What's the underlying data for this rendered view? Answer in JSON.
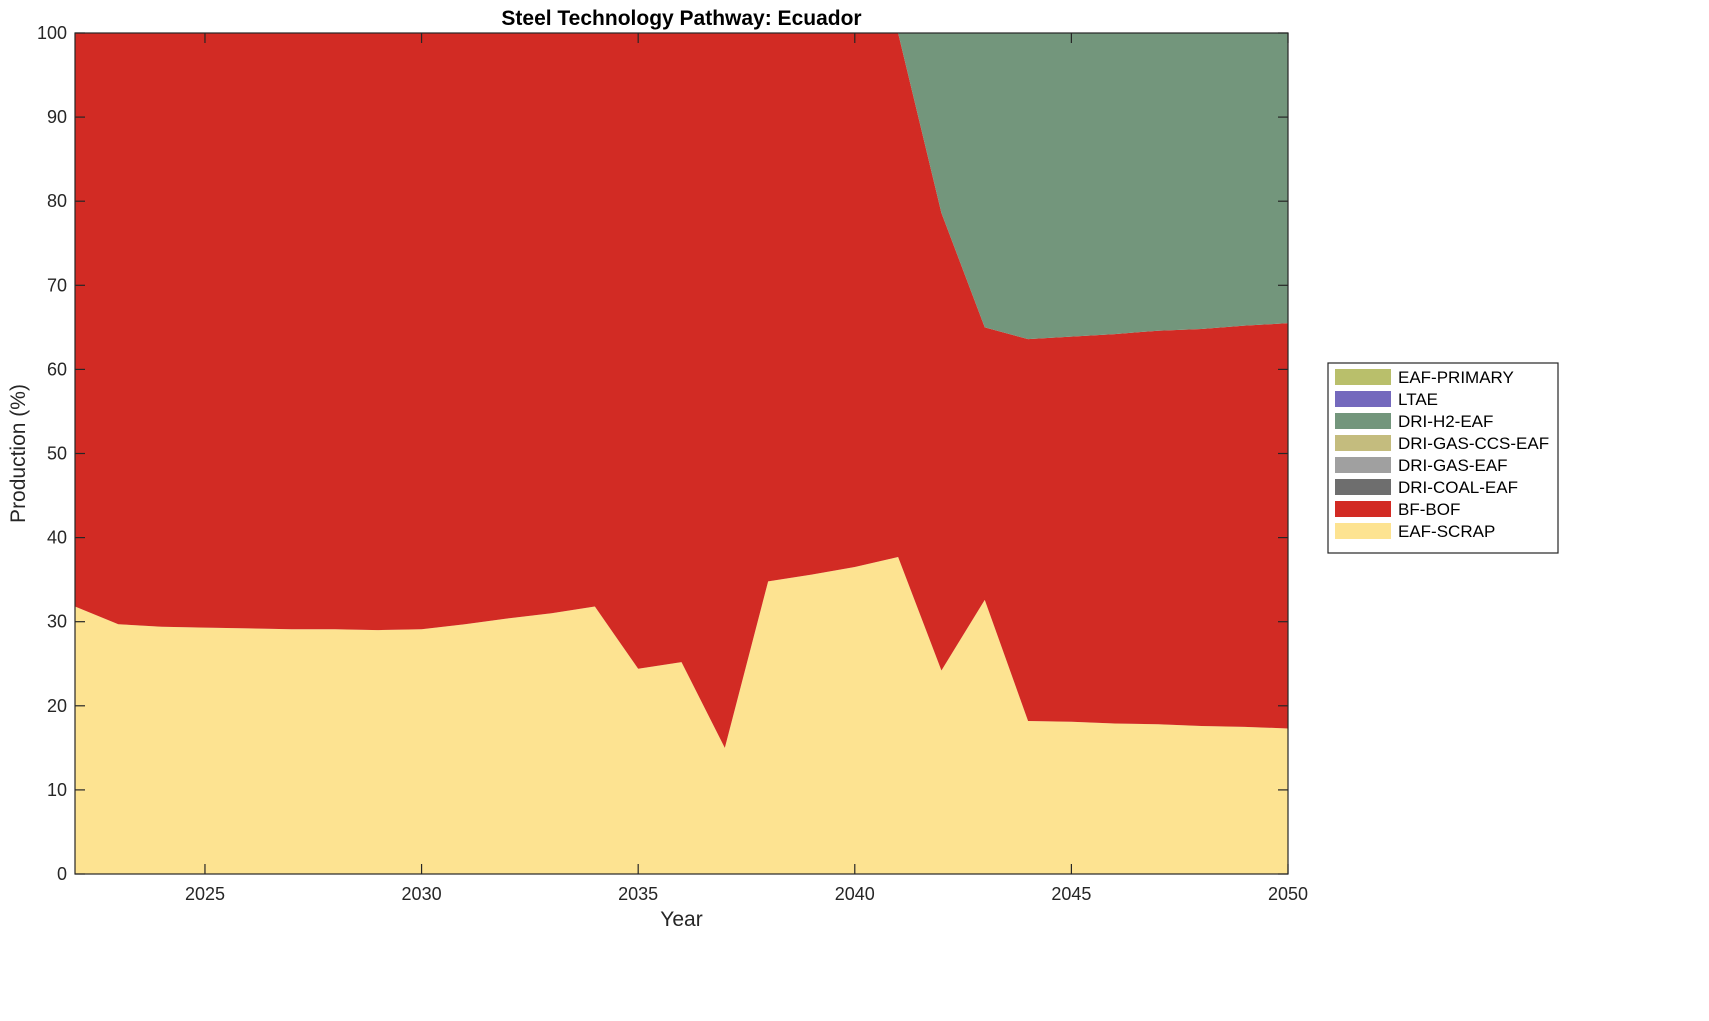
{
  "chart_data": {
    "type": "area",
    "title": "Steel Technology Pathway: Ecuador",
    "xlabel": "Year",
    "ylabel": "Production (%)",
    "xlim": [
      2022,
      2050
    ],
    "ylim": [
      0,
      100
    ],
    "xticks": [
      2025,
      2030,
      2035,
      2040,
      2045,
      2050
    ],
    "yticks": [
      0,
      10,
      20,
      30,
      40,
      50,
      60,
      70,
      80,
      90,
      100
    ],
    "grid": false,
    "legend_position": "right",
    "x": [
      2022,
      2023,
      2024,
      2025,
      2026,
      2027,
      2028,
      2029,
      2030,
      2031,
      2032,
      2033,
      2034,
      2035,
      2036,
      2037,
      2038,
      2039,
      2040,
      2041,
      2042,
      2043,
      2044,
      2045,
      2046,
      2047,
      2048,
      2049,
      2050
    ],
    "series": [
      {
        "name": "EAF-SCRAP",
        "color": "#FDE391",
        "values": [
          31.8,
          29.7,
          29.4,
          29.3,
          29.2,
          29.1,
          29.1,
          29.0,
          29.1,
          29.7,
          30.4,
          31.0,
          31.8,
          24.4,
          25.2,
          15.0,
          34.8,
          35.6,
          36.5,
          37.7,
          24.2,
          32.6,
          18.2,
          18.1,
          17.9,
          17.8,
          17.6,
          17.5,
          17.3
        ]
      },
      {
        "name": "BF-BOF",
        "color": "#D22B24",
        "values": [
          68.2,
          70.3,
          70.6,
          70.7,
          70.8,
          70.9,
          70.9,
          71.0,
          70.9,
          70.3,
          69.6,
          69.0,
          68.2,
          75.6,
          74.8,
          85.0,
          65.2,
          64.4,
          63.5,
          62.3,
          54.4,
          32.4,
          45.4,
          45.8,
          46.3,
          46.8,
          47.2,
          47.7,
          48.2
        ]
      },
      {
        "name": "DRI-COAL-EAF",
        "color": "#6E6E6E",
        "values": [
          0,
          0,
          0,
          0,
          0,
          0,
          0,
          0,
          0,
          0,
          0,
          0,
          0,
          0,
          0,
          0,
          0,
          0,
          0,
          0,
          0,
          0,
          0,
          0,
          0,
          0,
          0,
          0,
          0
        ]
      },
      {
        "name": "DRI-GAS-EAF",
        "color": "#A0A0A0",
        "values": [
          0,
          0,
          0,
          0,
          0,
          0,
          0,
          0,
          0,
          0,
          0,
          0,
          0,
          0,
          0,
          0,
          0,
          0,
          0,
          0,
          0,
          0,
          0,
          0,
          0,
          0,
          0,
          0,
          0
        ]
      },
      {
        "name": "DRI-GAS-CCS-EAF",
        "color": "#C4BC7E",
        "values": [
          0,
          0,
          0,
          0,
          0,
          0,
          0,
          0,
          0,
          0,
          0,
          0,
          0,
          0,
          0,
          0,
          0,
          0,
          0,
          0,
          0,
          0,
          0,
          0,
          0,
          0,
          0,
          0,
          0
        ]
      },
      {
        "name": "DRI-H2-EAF",
        "color": "#73967C",
        "values": [
          0,
          0,
          0,
          0,
          0,
          0,
          0,
          0,
          0,
          0,
          0,
          0,
          0,
          0,
          0,
          0,
          0,
          0,
          0,
          0,
          21.4,
          35.0,
          36.4,
          36.1,
          35.8,
          35.4,
          35.2,
          34.8,
          34.5
        ]
      },
      {
        "name": "LTAE",
        "color": "#7469BD",
        "values": [
          0,
          0,
          0,
          0,
          0,
          0,
          0,
          0,
          0,
          0,
          0,
          0,
          0,
          0,
          0,
          0,
          0,
          0,
          0,
          0,
          0,
          0,
          0,
          0,
          0,
          0,
          0,
          0,
          0
        ]
      },
      {
        "name": "EAF-PRIMARY",
        "color": "#B9BF6B",
        "values": [
          0,
          0,
          0,
          0,
          0,
          0,
          0,
          0,
          0,
          0,
          0,
          0,
          0,
          0,
          0,
          0,
          0,
          0,
          0,
          0,
          0,
          0,
          0,
          0,
          0,
          0,
          0,
          0,
          0
        ]
      }
    ]
  }
}
